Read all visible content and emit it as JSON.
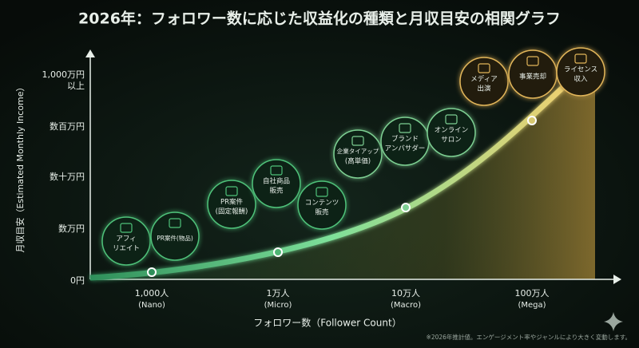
{
  "title": "2026年：フォロワー数に応じた収益化の種類と月収目安の相関グラフ",
  "y_axis": {
    "title": "月収目安（Estimated Monthly Income）",
    "labels": [
      [
        "0円"
      ],
      [
        "数万円"
      ],
      [
        "数十万円"
      ],
      [
        "数百万円"
      ],
      [
        "1,000万円",
        "以上"
      ]
    ]
  },
  "x_axis": {
    "title": "フォロワー数（Follower Count）",
    "labels": [
      [
        "1,000人",
        "(Nano)"
      ],
      [
        "1万人",
        "(Micro)"
      ],
      [
        "10万人",
        "(Macro)"
      ],
      [
        "100万人",
        "(Mega)"
      ]
    ]
  },
  "bubbles": [
    {
      "lines": [
        "アフィ",
        "リエイト"
      ]
    },
    {
      "lines": [
        "PR案件(物品)"
      ]
    },
    {
      "lines": [
        "PR案件",
        "(固定報酬)"
      ]
    },
    {
      "lines": [
        "自社商品",
        "販売"
      ]
    },
    {
      "lines": [
        "コンテンツ",
        "販売"
      ]
    },
    {
      "lines": [
        "企業タイアップ",
        "(高単価)"
      ]
    },
    {
      "lines": [
        "ブランド",
        "アンバサダー"
      ]
    },
    {
      "lines": [
        "オンライン",
        "サロン"
      ]
    },
    {
      "lines": [
        "メディア",
        "出演"
      ]
    },
    {
      "lines": [
        "事業売却"
      ]
    },
    {
      "lines": [
        "ライセンス",
        "収入"
      ]
    }
  ],
  "footnote": "※2026年推計値。エンゲージメント率やジャンルにより大きく変動します。"
}
